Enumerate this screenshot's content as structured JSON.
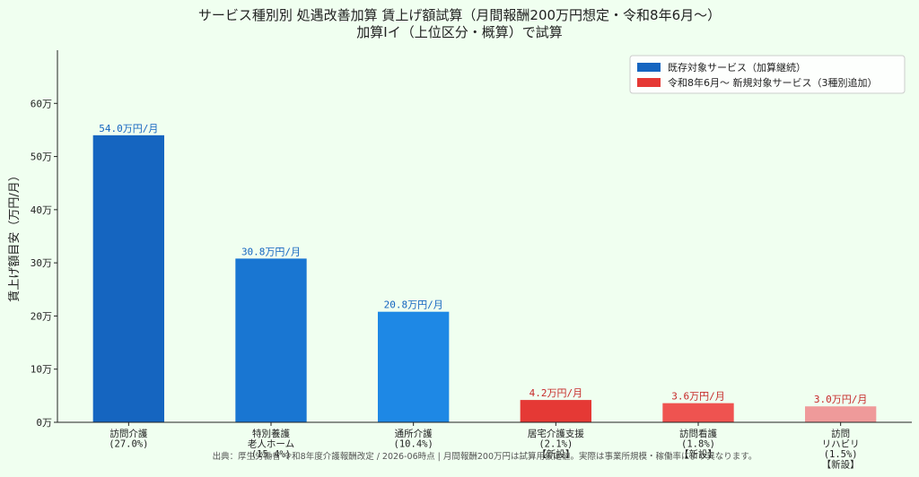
{
  "chart_data": {
    "type": "bar",
    "title": "サービス種別別 処遇改善加算 賃上げ額試算（月間報酬200万円想定・令和8年6月～）",
    "subtitle": "加算Ⅰイ（上位区分・概算）で試算",
    "ylabel": "賃上げ額目安（万円/月）",
    "ylim": [
      0,
      70
    ],
    "yticks": [
      0,
      10,
      20,
      30,
      40,
      50,
      60
    ],
    "ytick_labels": [
      "0万",
      "10万",
      "20万",
      "30万",
      "40万",
      "50万",
      "60万"
    ],
    "categories": [
      [
        "訪問介護",
        "(27.0%)"
      ],
      [
        "特別養護",
        "老人ホーム",
        "(15.4%)"
      ],
      [
        "通所介護",
        "(10.4%)"
      ],
      [
        "居宅介護支援",
        "(2.1%)",
        "【新設】"
      ],
      [
        "訪問看護",
        "(1.8%)",
        "【新設】"
      ],
      [
        "訪問",
        "リハビリ",
        "(1.5%)",
        "【新設】"
      ]
    ],
    "values": [
      54.0,
      30.8,
      20.8,
      4.2,
      3.6,
      3.0
    ],
    "value_labels": [
      "54.0万円/月",
      "30.8万円/月",
      "20.8万円/月",
      "4.2万円/月",
      "3.6万円/月",
      "3.0万円/月"
    ],
    "bar_colors": [
      "#1565c0",
      "#1976d2",
      "#1e88e5",
      "#e53935",
      "#ef5350",
      "#ef9a9a"
    ],
    "label_colors": [
      "#1565c0",
      "#1565c0",
      "#1565c0",
      "#c62828",
      "#c62828",
      "#c62828"
    ],
    "legend": {
      "placement": "top-right",
      "entries": [
        {
          "label": "既存対象サービス（加算継続）",
          "color": "#1565c0"
        },
        {
          "label": "令和8年6月～ 新規対象サービス（3種別追加）",
          "color": "#e53935"
        }
      ]
    },
    "grid": false
  },
  "source_note": "出典：厚生労働省 令和8年度介護報酬改定 / 2026-06時点 | 月間報酬200万円は試算用仮定値。実際は事業所規模・稼働率により異なります。"
}
